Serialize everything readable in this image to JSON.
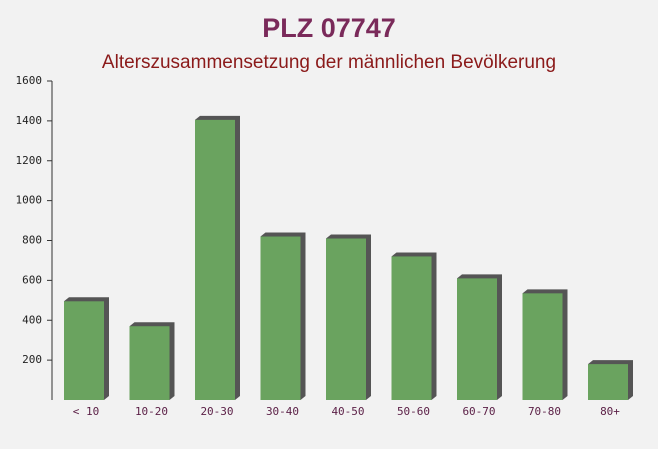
{
  "chart_data": {
    "type": "bar",
    "title": "PLZ 07747",
    "subtitle": "Alterszusammensetzung der männlichen Bevölkerung",
    "categories": [
      "< 10",
      "10-20",
      "20-30",
      "30-40",
      "40-50",
      "50-60",
      "60-70",
      "70-80",
      "80+"
    ],
    "values": [
      495,
      370,
      1405,
      820,
      810,
      720,
      610,
      535,
      180
    ],
    "color": "#6aa35f",
    "ylim": [
      0,
      1600
    ],
    "yticks": [
      200,
      400,
      600,
      800,
      1000,
      1200,
      1400,
      1600
    ]
  }
}
